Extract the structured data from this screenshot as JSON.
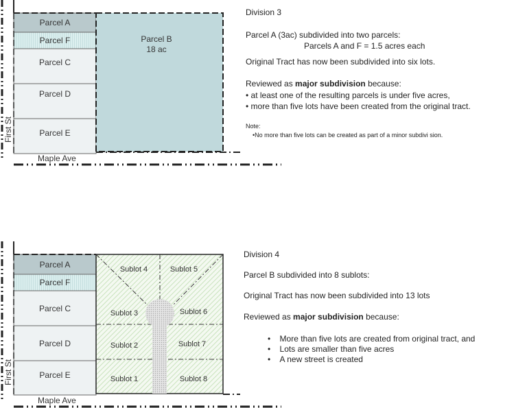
{
  "streets": {
    "first": "First St",
    "maple": "Maple Ave"
  },
  "division3": {
    "parcels": {
      "a": "Parcel A",
      "f": "Parcel F",
      "c": "Parcel C",
      "d": "Parcel D",
      "e": "Parcel E",
      "b": "Parcel B",
      "b_area": "18 ac"
    },
    "title": "Division 3",
    "line1": "Parcel A (3ac) subdivided into two parcels:",
    "line2": "Parcels A and F = 1.5 acres each",
    "line3": "Original Tract has now been subdivided into six lots.",
    "review_prefix": "Reviewed as ",
    "review_bold": "major subdivision",
    "review_suffix": " because:",
    "bullets": [
      "• at least one of the resulting parcels is under five acres,",
      "• more than five lots have been created from the original tract."
    ],
    "note_label": "Note:",
    "note": "•No more than five lots can be created as part of a minor subdivi  sion."
  },
  "division4": {
    "parcels": {
      "a": "Parcel A",
      "f": "Parcel F",
      "c": "Parcel C",
      "d": "Parcel D",
      "e": "Parcel E"
    },
    "sublots": [
      "Sublot 1",
      "Sublot 2",
      "Sublot 3",
      "Sublot 4",
      "Sublot 5",
      "Sublot 6",
      "Sublot 7",
      "Sublot 8"
    ],
    "title": "Division 4",
    "line1": "Parcel B subdivided into 8 sublots:",
    "line2": "Original Tract has now been subdivided into 13 lots",
    "review_prefix": "Reviewed as ",
    "review_bold": "major subdivision",
    "review_suffix": " because:",
    "bullets": [
      "More than five lots are created from original tract, and",
      "Lots are smaller than five acres",
      "A new street is created"
    ]
  },
  "colors": {
    "parcel_a": "#b9c9cc",
    "parcel_f": "#d8ecec",
    "parcel_light": "#eef2f3",
    "parcel_b": "#c0d9dc",
    "sublot_hatch": "#c8e2bc",
    "street": "#d0d0d0"
  }
}
